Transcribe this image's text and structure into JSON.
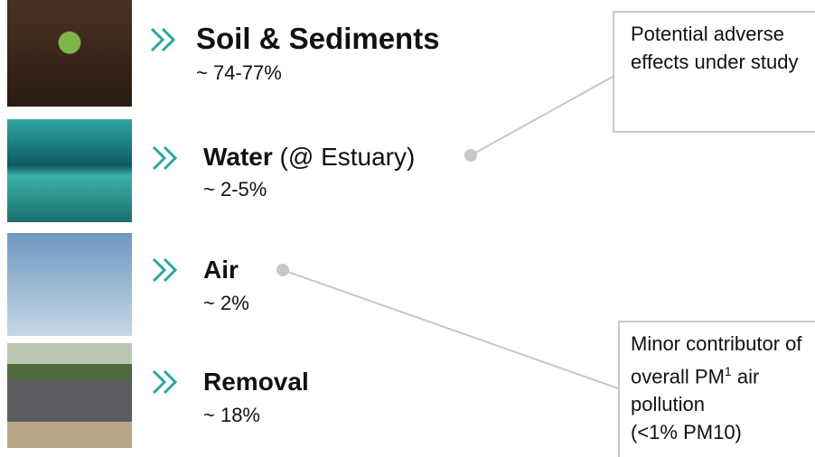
{
  "items": [
    {
      "title": "Soil & Sediments",
      "value": "~ 74-77%"
    },
    {
      "title": "Water",
      "note": "(@ Estuary)",
      "value": "~ 2-5%"
    },
    {
      "title": "Air",
      "value": "~ 2%"
    },
    {
      "title": "Removal",
      "value": "~ 18%"
    }
  ],
  "callouts": [
    {
      "text": "Potential adverse effects under study"
    },
    {
      "text": "Minor contributor of overall PM",
      "sup": "1",
      "text_after": " air pollution",
      "line2": "(<1% PM10)"
    }
  ]
}
